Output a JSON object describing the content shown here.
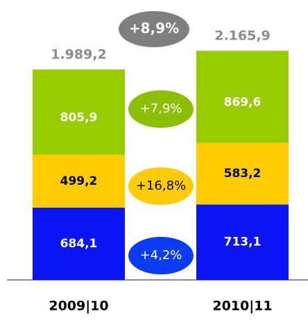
{
  "chart_data": {
    "type": "stacked_bar",
    "categories": [
      "2009|10",
      "2010|11"
    ],
    "series": [
      {
        "name": "Blue",
        "color": "#0a14f5",
        "values": [
          684.1,
          713.1
        ],
        "value_labels": [
          "684,1",
          "713,1"
        ],
        "label_color": "#ffffff"
      },
      {
        "name": "Yellow",
        "color": "#ffcc00",
        "values": [
          499.2,
          583.2
        ],
        "value_labels": [
          "499,2",
          "583,2"
        ],
        "label_color": "#000000"
      },
      {
        "name": "Green",
        "color": "#99cc00",
        "values": [
          805.9,
          869.6
        ],
        "value_labels": [
          "805,9",
          "869,6"
        ],
        "label_color": "#ffffff"
      }
    ],
    "totals": {
      "values": [
        1989.2,
        2165.9
      ],
      "value_labels": [
        "1.989,2",
        "2.165,9"
      ],
      "color": "#8c8c8c"
    },
    "annotations": [
      {
        "text": "+8,9%",
        "color": "#7f7f7f",
        "text_color": "#ffffff",
        "bold": true
      },
      {
        "text": "+7,9%",
        "color": "#8cbf00",
        "text_color": "#ffffff",
        "bold": false
      },
      {
        "text": "+16,8%",
        "color": "#ffcc00",
        "text_color": "#000000",
        "bold": false
      },
      {
        "text": "+4,2%",
        "color": "#0a3cf5",
        "text_color": "#ffffff",
        "bold": false
      }
    ],
    "ylim": [
      0,
      2600
    ]
  }
}
